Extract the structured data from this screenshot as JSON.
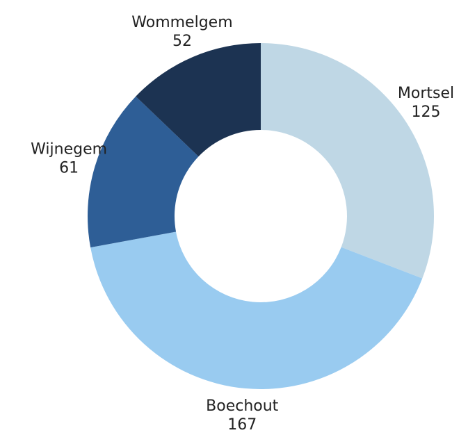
{
  "chart_data": {
    "type": "donut",
    "categories": [
      "Mortsel",
      "Boechout",
      "Wijnegem",
      "Wommelgem"
    ],
    "values": [
      125,
      167,
      61,
      52
    ],
    "colors": [
      "#bfd7e5",
      "#99cbf0",
      "#2e5e96",
      "#1c3352"
    ]
  }
}
